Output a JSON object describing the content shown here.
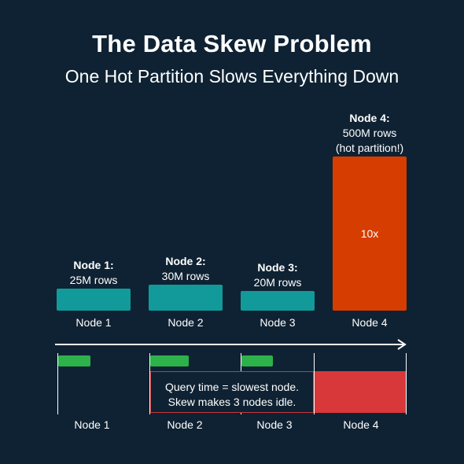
{
  "header": {
    "title": "The Data Skew Problem",
    "subtitle": "One Hot Partition Slows Everything Down"
  },
  "nodes": [
    {
      "name": "Node 1:",
      "rows": "25M rows",
      "rows_millions": 25,
      "axis_label": "Node 1"
    },
    {
      "name": "Node 2:",
      "rows": "30M rows",
      "rows_millions": 30,
      "axis_label": "Node 2"
    },
    {
      "name": "Node 3:",
      "rows": "20M rows",
      "rows_millions": 20,
      "axis_label": "Node 3"
    },
    {
      "name": "Node 4:",
      "rows": "500M rows",
      "note": "(hot partition!)",
      "rows_millions": 500,
      "axis_label": "Node 4",
      "multiplier": "10x"
    }
  ],
  "timeline": {
    "labels": [
      "Node 1",
      "Node 2",
      "Node 3",
      "Node 4"
    ],
    "callout_line1": "Query time = slowest node.",
    "callout_line2": "Skew makes 3 nodes idle."
  },
  "colors": {
    "background": "#0f2233",
    "normal_partition": "#119a99",
    "hot_partition": "#d63d00",
    "task_done": "#2db24b",
    "slow_task": "#d9383a"
  }
}
